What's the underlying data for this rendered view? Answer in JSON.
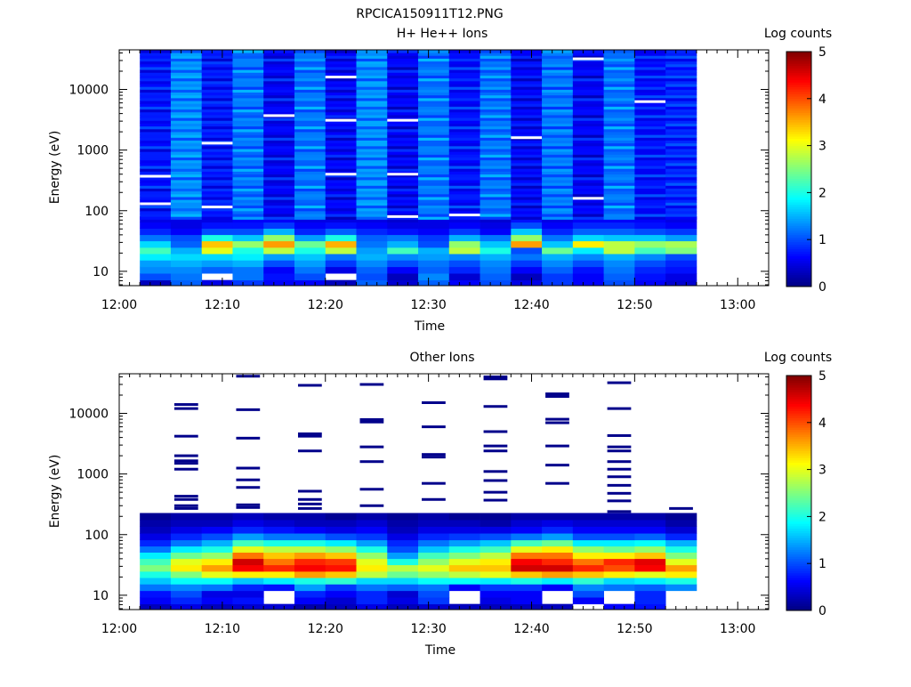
{
  "page_title": "RPCICA150911T12.PNG",
  "colorbar": {
    "label": "Log counts",
    "ticks": [
      "0",
      "1",
      "2",
      "3",
      "4",
      "5"
    ],
    "range": [
      0,
      5
    ],
    "colormap": [
      "#00007f",
      "#0000ff",
      "#007fff",
      "#00ffff",
      "#7fff7f",
      "#ffff00",
      "#ff7f00",
      "#ff0000",
      "#7f0000"
    ]
  },
  "chart_data": [
    {
      "type": "heatmap",
      "title": "H+ He++ Ions",
      "xlabel": "Time",
      "ylabel": "Energy (eV)",
      "xticks": [
        "12:00",
        "12:10",
        "12:20",
        "12:30",
        "12:40",
        "12:50",
        "13:00"
      ],
      "xlim_minutes": [
        0,
        63
      ],
      "yscale": "log",
      "ylim": [
        5.8,
        45000
      ],
      "yticks": [
        "10",
        "100",
        "1000",
        "10000"
      ],
      "column_start_times": [
        "12:02",
        "12:05",
        "12:08",
        "12:11",
        "12:14",
        "12:17",
        "12:20",
        "12:23",
        "12:26",
        "12:29",
        "12:32",
        "12:35",
        "12:38",
        "12:41",
        "12:44",
        "12:47",
        "12:50",
        "12:53"
      ],
      "column_end_time": "12:56",
      "energy_bins_eV": [
        6.3,
        8.2,
        10.5,
        13.5,
        17.3,
        22,
        28,
        36,
        45,
        58,
        72
      ],
      "log_counts": [
        [
          0.3,
          1.1,
          0.5,
          0.9,
          0.6,
          0.6,
          0.3,
          1.1,
          0.4,
          1.1,
          0.6,
          1.0,
          0.5,
          0.9,
          0.6,
          1.0,
          0.6,
          0.4
        ],
        [
          1.0,
          1.2,
          -1,
          1.2,
          0.7,
          1.0,
          -1,
          1.0,
          0.3,
          1.3,
          0.4,
          1.1,
          0.3,
          0.9,
          0.6,
          1.1,
          0.7,
          0.5
        ],
        [
          1.3,
          1.3,
          1.1,
          1.2,
          0.6,
          1.2,
          0.5,
          1.1,
          0.6,
          1.1,
          0.8,
          1.2,
          0.6,
          1.1,
          0.7,
          1.2,
          0.8,
          0.7
        ],
        [
          1.4,
          1.5,
          1.4,
          1.5,
          1.0,
          1.4,
          0.9,
          1.3,
          1.0,
          1.2,
          1.0,
          1.3,
          0.9,
          1.3,
          1.0,
          1.3,
          1.0,
          0.8
        ],
        [
          1.8,
          1.7,
          1.7,
          1.8,
          1.4,
          1.6,
          1.2,
          1.5,
          1.3,
          1.4,
          1.3,
          1.5,
          1.2,
          1.5,
          1.3,
          1.5,
          1.3,
          1.0
        ],
        [
          2.2,
          1.5,
          3.0,
          2.0,
          2.8,
          2.0,
          2.8,
          1.4,
          2.2,
          1.5,
          2.8,
          2.0,
          1.0,
          2.4,
          1.8,
          2.8,
          2.2,
          2.5
        ],
        [
          1.7,
          1.1,
          3.4,
          2.6,
          3.6,
          2.4,
          3.5,
          1.2,
          1.5,
          1.0,
          2.6,
          1.6,
          3.6,
          1.6,
          3.2,
          2.8,
          2.6,
          2.7
        ],
        [
          1.2,
          1.0,
          2.0,
          1.6,
          2.6,
          1.4,
          2.0,
          1.1,
          1.2,
          0.9,
          1.5,
          1.2,
          2.6,
          1.2,
          1.7,
          1.6,
          1.6,
          1.4
        ],
        [
          0.8,
          0.6,
          1.0,
          1.0,
          1.5,
          0.8,
          1.1,
          0.8,
          0.7,
          0.6,
          0.9,
          0.6,
          1.6,
          0.8,
          1.1,
          1.1,
          1.0,
          0.9
        ],
        [
          0.6,
          0.5,
          0.7,
          0.7,
          0.9,
          0.6,
          0.7,
          0.6,
          0.5,
          0.5,
          0.6,
          0.5,
          1.0,
          0.6,
          0.8,
          0.8,
          0.7,
          0.6
        ],
        [
          0.5,
          0.5,
          0.5,
          0.6,
          0.6,
          0.5,
          0.5,
          0.5,
          0.4,
          0.5,
          0.5,
          0.4,
          0.7,
          0.5,
          0.6,
          0.6,
          0.6,
          0.5
        ]
      ],
      "upper_band": {
        "energy_range_eV": [
          72,
          45000
        ],
        "typical_log_counts": [
          0.7,
          1.3,
          0.7,
          1.2,
          0.6,
          1.2,
          0.6,
          1.3,
          0.6,
          1.2,
          0.7,
          1.2,
          0.6,
          1.2,
          0.6,
          1.2,
          0.7,
          0.8
        ],
        "gap_energies_eV": [
          [
            130,
            370
          ],
          [],
          [
            115,
            1300
          ],
          [],
          [
            3700
          ],
          [],
          [
            400,
            3100,
            16000
          ],
          [],
          [
            80,
            400,
            3100
          ],
          [],
          [
            85
          ],
          [],
          [
            1600
          ],
          [],
          [
            160,
            32000
          ],
          [],
          [
            6300
          ],
          []
        ]
      }
    },
    {
      "type": "heatmap",
      "title": "Other Ions",
      "xlabel": "Time",
      "ylabel": "Energy (eV)",
      "xticks": [
        "12:00",
        "12:10",
        "12:20",
        "12:30",
        "12:40",
        "12:50",
        "13:00"
      ],
      "xlim_minutes": [
        0,
        63
      ],
      "yscale": "log",
      "ylim": [
        5.8,
        45000
      ],
      "yticks": [
        "10",
        "100",
        "1000",
        "10000"
      ],
      "column_start_times": [
        "12:02",
        "12:05",
        "12:08",
        "12:11",
        "12:14",
        "12:17",
        "12:20",
        "12:23",
        "12:26",
        "12:29",
        "12:32",
        "12:35",
        "12:38",
        "12:41",
        "12:44",
        "12:47",
        "12:50",
        "12:53"
      ],
      "column_end_time": "12:56",
      "energy_bins_eV": [
        6.3,
        8.2,
        10.5,
        13.5,
        17.3,
        22,
        28,
        36,
        45,
        58,
        72,
        93,
        120,
        155,
        200
      ],
      "log_counts": [
        [
          0.3,
          0.5,
          0.3,
          0.4,
          0.4,
          0.2,
          0.3,
          0.5,
          0.3,
          0.4,
          0.3,
          0.3,
          0.3,
          0.3,
          -1,
          0.6,
          0.7,
          -1
        ],
        [
          0.6,
          0.8,
          0.6,
          0.7,
          -1,
          0.6,
          0.4,
          0.8,
          0.5,
          0.9,
          -1,
          0.5,
          0.6,
          -1,
          0.6,
          -1,
          0.8,
          -1
        ],
        [
          0.7,
          1.0,
          0.5,
          0.5,
          -1,
          0.8,
          0.6,
          0.8,
          0.4,
          1.0,
          -1,
          0.6,
          0.6,
          -1,
          1.0,
          -1,
          0.8,
          -1
        ],
        [
          1.2,
          1.3,
          1.2,
          0.8,
          0.7,
          1.4,
          0.9,
          1.2,
          1.1,
          1.2,
          0.6,
          0.9,
          0.9,
          0.6,
          1.3,
          1.2,
          1.1,
          1.3
        ],
        [
          1.6,
          1.9,
          1.9,
          1.6,
          1.8,
          2.0,
          2.1,
          1.7,
          1.7,
          1.9,
          1.9,
          1.8,
          2.0,
          1.8,
          2.1,
          1.7,
          1.8,
          2.0
        ],
        [
          2.0,
          2.5,
          3.0,
          3.2,
          3.2,
          3.6,
          3.4,
          2.8,
          2.4,
          2.6,
          2.8,
          3.0,
          3.4,
          3.6,
          3.4,
          3.2,
          3.0,
          3.2
        ],
        [
          2.5,
          3.2,
          3.6,
          4.4,
          4.2,
          4.4,
          4.3,
          3.2,
          2.8,
          3.0,
          3.4,
          3.4,
          4.6,
          4.6,
          4.2,
          4.0,
          4.4,
          3.6
        ],
        [
          2.2,
          3.0,
          3.2,
          4.6,
          3.8,
          4.2,
          4.1,
          3.0,
          2.0,
          2.6,
          3.0,
          3.2,
          4.4,
          4.2,
          3.8,
          4.2,
          4.5,
          3.0
        ],
        [
          1.8,
          2.4,
          2.6,
          3.8,
          3.4,
          3.6,
          3.4,
          2.6,
          1.4,
          2.2,
          2.5,
          2.8,
          3.8,
          3.8,
          3.2,
          3.2,
          3.4,
          2.5
        ],
        [
          1.2,
          1.8,
          2.0,
          3.0,
          2.8,
          2.8,
          2.6,
          2.0,
          1.0,
          1.6,
          2.0,
          2.2,
          3.0,
          3.2,
          2.6,
          2.4,
          2.6,
          2.0
        ],
        [
          0.8,
          1.2,
          1.5,
          2.2,
          2.0,
          2.0,
          1.8,
          1.4,
          0.8,
          1.2,
          1.4,
          1.6,
          2.2,
          2.4,
          1.8,
          1.8,
          1.9,
          1.5
        ],
        [
          0.5,
          0.8,
          1.0,
          1.4,
          1.2,
          1.2,
          1.0,
          0.9,
          0.5,
          0.8,
          0.9,
          1.0,
          1.2,
          1.4,
          1.0,
          1.0,
          1.1,
          0.8
        ],
        [
          0.3,
          0.5,
          0.6,
          0.8,
          0.7,
          0.6,
          0.5,
          0.6,
          0.3,
          0.5,
          0.5,
          0.5,
          0.6,
          0.8,
          0.6,
          0.6,
          0.6,
          0.4
        ],
        [
          0.2,
          0.3,
          0.3,
          0.5,
          0.4,
          0.3,
          0.3,
          0.4,
          0.2,
          0.3,
          0.3,
          0.2,
          0.4,
          0.5,
          0.4,
          0.4,
          0.4,
          0.2
        ],
        [
          0.1,
          0.2,
          0.2,
          0.3,
          0.2,
          0.2,
          0.1,
          0.2,
          0.1,
          0.2,
          0.1,
          0.1,
          0.2,
          0.2,
          0.2,
          0.2,
          0.2,
          0.1
        ]
      ],
      "sparse_lines_eV": [
        [],
        [
          1650,
          2000,
          12000,
          14000,
          4200,
          1500,
          1200,
          380,
          430,
          300,
          270
        ],
        [],
        [
          41000,
          11500,
          3900,
          1250,
          800,
          600,
          310,
          280
        ],
        [],
        [
          29000,
          4600,
          4200,
          2400,
          520,
          380,
          320,
          270
        ],
        [],
        [
          30000,
          7900,
          7200,
          2800,
          1600,
          560,
          300
        ],
        [],
        [
          15000,
          6000,
          2100,
          1900,
          700,
          380
        ],
        [],
        [
          40000,
          37000,
          13000,
          5000,
          2900,
          2400,
          1100,
          780,
          500,
          370
        ],
        [],
        [
          21000,
          19000,
          8000,
          7000,
          2900,
          1400,
          700
        ],
        [],
        [
          32000,
          12000,
          4300,
          2800,
          2400,
          1600,
          1200,
          900,
          650,
          480,
          360,
          240
        ],
        [],
        [
          270
        ]
      ]
    }
  ]
}
